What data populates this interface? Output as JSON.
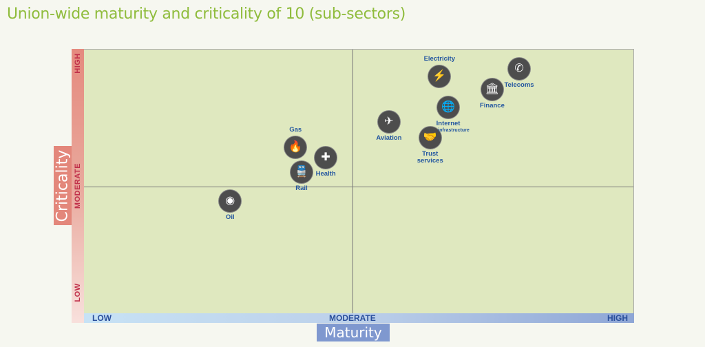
{
  "chart_data": {
    "type": "scatter",
    "title": "Union-wide maturity and criticality of 10 (sub-sectors)",
    "xlabel": "Maturity",
    "ylabel": "Criticality",
    "x_ticks": [
      "LOW",
      "MODERATE",
      "HIGH"
    ],
    "y_ticks": [
      "LOW",
      "MODERATE",
      "HIGH"
    ],
    "xlim": [
      0,
      10
    ],
    "ylim": [
      0,
      10
    ],
    "grid": "quadrants at moderate",
    "colors": {
      "icon": "#4d4d4d",
      "label": "#2457a0",
      "title": "#8fbc3c"
    },
    "points": [
      {
        "name": "Oil",
        "icon": "oil-barrel-icon",
        "glyph": "◉",
        "maturity": 2.66,
        "criticality": 4.23,
        "label_pos": "below"
      },
      {
        "name": "Gas",
        "icon": "flame-icon",
        "glyph": "🔥",
        "maturity": 3.85,
        "criticality": 6.27,
        "label_pos": "above"
      },
      {
        "name": "Rail",
        "icon": "train-icon",
        "glyph": "🚆",
        "maturity": 3.96,
        "criticality": 5.33,
        "label_pos": "below"
      },
      {
        "name": "Health",
        "icon": "medical-cross-icon",
        "glyph": "✚",
        "maturity": 4.4,
        "criticality": 5.87,
        "label_pos": "below"
      },
      {
        "name": "Aviation",
        "icon": "airplane-icon",
        "glyph": "✈",
        "maturity": 5.55,
        "criticality": 7.23,
        "label_pos": "below"
      },
      {
        "name": "Trust services",
        "icon": "handshake-icon",
        "glyph": "🤝",
        "maturity": 6.3,
        "criticality": 6.63,
        "label_pos": "below"
      },
      {
        "name": "Internet",
        "sub": "infrastructure",
        "icon": "globe-icon",
        "glyph": "🌐",
        "maturity": 6.63,
        "criticality": 7.78,
        "label_pos": "below"
      },
      {
        "name": "Electricity",
        "icon": "power-pylon-icon",
        "glyph": "⚡",
        "maturity": 6.47,
        "criticality": 8.96,
        "label_pos": "above"
      },
      {
        "name": "Finance",
        "icon": "bank-icon",
        "glyph": "🏛",
        "maturity": 7.43,
        "criticality": 8.46,
        "label_pos": "below"
      },
      {
        "name": "Telecoms",
        "icon": "phone-icon",
        "glyph": "✆",
        "maturity": 7.92,
        "criticality": 9.24,
        "label_pos": "below"
      }
    ]
  }
}
